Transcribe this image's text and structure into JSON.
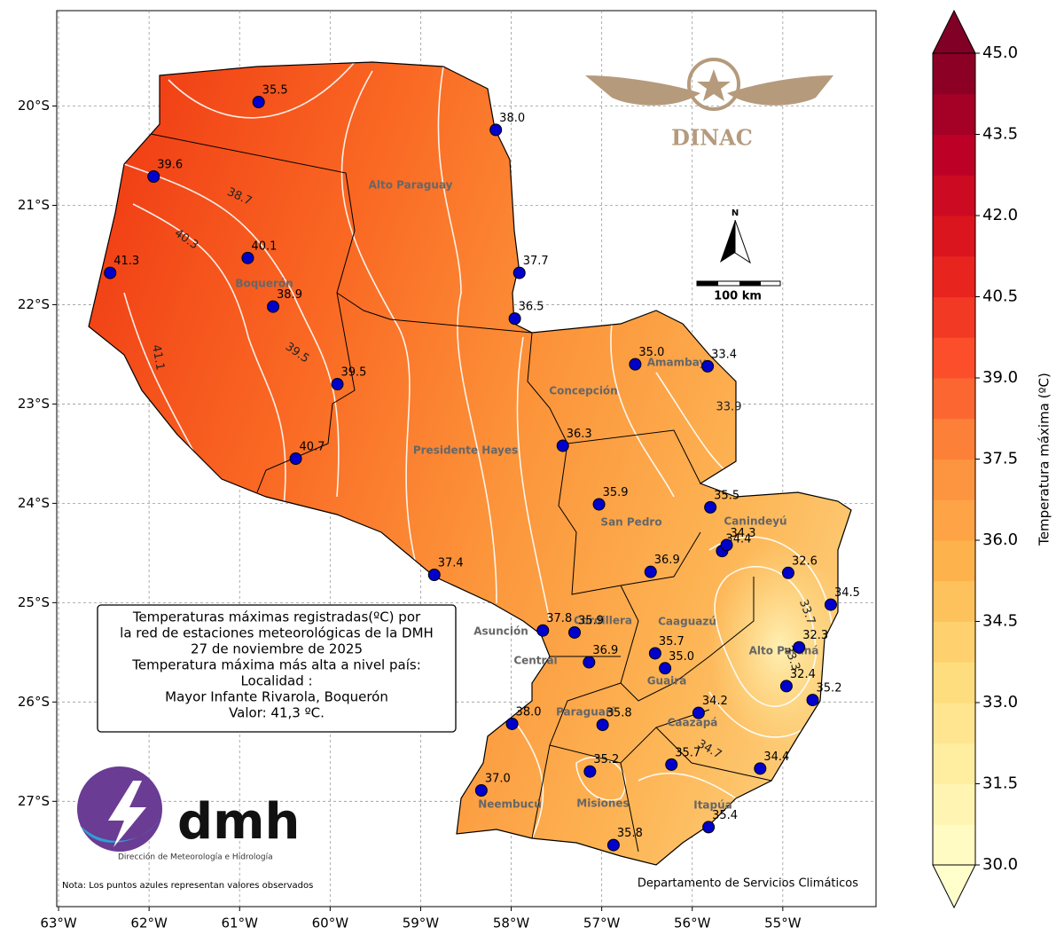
{
  "map": {
    "xlim": [
      -63.02,
      -53.97
    ],
    "ylim": [
      -28.06,
      -19.04
    ],
    "xticks": [
      {
        "value": -63,
        "label": "63°W"
      },
      {
        "value": -62,
        "label": "62°W"
      },
      {
        "value": -61,
        "label": "61°W"
      },
      {
        "value": -60,
        "label": "60°W"
      },
      {
        "value": -59,
        "label": "59°W"
      },
      {
        "value": -58,
        "label": "58°W"
      },
      {
        "value": -57,
        "label": "57°W"
      },
      {
        "value": -56,
        "label": "56°W"
      },
      {
        "value": -55,
        "label": "55°W"
      }
    ],
    "yticks": [
      {
        "value": -20,
        "label": "20°S"
      },
      {
        "value": -21,
        "label": "21°S"
      },
      {
        "value": -22,
        "label": "22°S"
      },
      {
        "value": -23,
        "label": "23°S"
      },
      {
        "value": -24,
        "label": "24°S"
      },
      {
        "value": -25,
        "label": "25°S"
      },
      {
        "value": -26,
        "label": "26°S"
      },
      {
        "value": -27,
        "label": "27°S"
      }
    ],
    "grid": true,
    "marker_color": "#0000cc",
    "stations": [
      {
        "lon": -60.79,
        "lat": -19.96,
        "value": 35.5,
        "label": "35.5"
      },
      {
        "lon": -58.17,
        "lat": -20.24,
        "value": 38.0,
        "label": "38.0"
      },
      {
        "lon": -61.95,
        "lat": -20.71,
        "value": 39.6,
        "label": "39.6"
      },
      {
        "lon": -60.91,
        "lat": -21.53,
        "value": 40.1,
        "label": "40.1"
      },
      {
        "lon": -62.43,
        "lat": -21.68,
        "value": 41.3,
        "label": "41.3"
      },
      {
        "lon": -60.63,
        "lat": -22.02,
        "value": 38.9,
        "label": "38.9"
      },
      {
        "lon": -57.91,
        "lat": -21.68,
        "value": 37.7,
        "label": "37.7"
      },
      {
        "lon": -57.96,
        "lat": -22.14,
        "value": 36.5,
        "label": "36.5"
      },
      {
        "lon": -59.92,
        "lat": -22.8,
        "value": 39.5,
        "label": "39.5"
      },
      {
        "lon": -56.63,
        "lat": -22.6,
        "value": 35.0,
        "label": "35.0"
      },
      {
        "lon": -55.83,
        "lat": -22.62,
        "value": 33.4,
        "label": "33.4"
      },
      {
        "lon": -57.43,
        "lat": -23.42,
        "value": 36.3,
        "label": "36.3"
      },
      {
        "lon": -60.38,
        "lat": -23.55,
        "value": 40.7,
        "label": "40.7"
      },
      {
        "lon": -57.03,
        "lat": -24.01,
        "value": 35.9,
        "label": "35.9"
      },
      {
        "lon": -55.8,
        "lat": -24.04,
        "value": 35.5,
        "label": "35.5"
      },
      {
        "lon": -55.67,
        "lat": -24.48,
        "value": 34.4,
        "label": "34.4"
      },
      {
        "lon": -55.62,
        "lat": -24.42,
        "value": 34.3,
        "label": "34.3"
      },
      {
        "lon": -56.46,
        "lat": -24.69,
        "value": 36.9,
        "label": "36.9"
      },
      {
        "lon": -58.85,
        "lat": -24.72,
        "value": 37.4,
        "label": "37.4"
      },
      {
        "lon": -54.94,
        "lat": -24.7,
        "value": 32.6,
        "label": "32.6"
      },
      {
        "lon": -54.47,
        "lat": -25.02,
        "value": 34.5,
        "label": "34.5"
      },
      {
        "lon": -57.65,
        "lat": -25.28,
        "value": 37.8,
        "label": "37.8"
      },
      {
        "lon": -57.3,
        "lat": -25.3,
        "value": 35.9,
        "label": "35.9"
      },
      {
        "lon": -57.14,
        "lat": -25.6,
        "value": 36.9,
        "label": "36.9"
      },
      {
        "lon": -56.41,
        "lat": -25.51,
        "value": 35.7,
        "label": "35.7"
      },
      {
        "lon": -56.3,
        "lat": -25.66,
        "value": 35.0,
        "label": "35.0"
      },
      {
        "lon": -54.82,
        "lat": -25.45,
        "value": 32.3,
        "label": "32.3"
      },
      {
        "lon": -54.96,
        "lat": -25.84,
        "value": 32.4,
        "label": "32.4"
      },
      {
        "lon": -54.67,
        "lat": -25.98,
        "value": 35.2,
        "label": "35.2"
      },
      {
        "lon": -57.99,
        "lat": -26.22,
        "value": 38.0,
        "label": "38.0"
      },
      {
        "lon": -56.99,
        "lat": -26.23,
        "value": 35.8,
        "label": "35.8"
      },
      {
        "lon": -55.93,
        "lat": -26.11,
        "value": 34.2,
        "label": "34.2"
      },
      {
        "lon": -57.13,
        "lat": -26.7,
        "value": 35.2,
        "label": "35.2"
      },
      {
        "lon": -56.23,
        "lat": -26.63,
        "value": 35.7,
        "label": "35.7"
      },
      {
        "lon": -55.25,
        "lat": -26.67,
        "value": 34.4,
        "label": "34.4"
      },
      {
        "lon": -58.33,
        "lat": -26.89,
        "value": 37.0,
        "label": "37.0"
      },
      {
        "lon": -55.82,
        "lat": -27.26,
        "value": 35.4,
        "label": "35.4"
      },
      {
        "lon": -56.87,
        "lat": -27.44,
        "value": 35.8,
        "label": "35.8"
      }
    ],
    "departments": [
      "Alto Paraguay",
      "Boquerón",
      "Concepción",
      "Amambay",
      "Presidente Hayes",
      "San Pedro",
      "Canindeyú",
      "Caaguazú",
      "Alto Paraná",
      "Cordillera",
      "Asunción",
      "Central",
      "Guairá",
      "Paraguarí",
      "Caazapá",
      "Misiones",
      "Neembucú",
      "Itapúa"
    ],
    "contour_labels": [
      "38.7",
      "40.3",
      "41.1",
      "39.5",
      "33.9",
      "33.7",
      "33.3",
      "34.7"
    ]
  },
  "colorbar": {
    "label": "Temperatura máxima (ºC)",
    "lim": [
      30,
      45
    ],
    "step": 0.75,
    "colormap": "YlOrRd",
    "ticks": [
      {
        "value": 30,
        "label": "30.0"
      },
      {
        "value": 31.5,
        "label": "31.5"
      },
      {
        "value": 33,
        "label": "33.0"
      },
      {
        "value": 34.5,
        "label": "34.5"
      },
      {
        "value": 36,
        "label": "36.0"
      },
      {
        "value": 37.5,
        "label": "37.5"
      },
      {
        "value": 39,
        "label": "39.0"
      },
      {
        "value": 40.5,
        "label": "40.5"
      },
      {
        "value": 42,
        "label": "42.0"
      },
      {
        "value": 43.5,
        "label": "43.5"
      },
      {
        "value": 45,
        "label": "45.0"
      }
    ]
  },
  "info_box": [
    "Temperaturas máximas registradas(ºC) por",
    "la red de estaciones meteorológicas de la DMH",
    "27 de noviembre de 2025",
    "Temperatura máxima más alta a nivel país:",
    "Localidad :",
    "Mayor Infante Rivarola, Boquerón",
    "Valor: 41,3 ºC."
  ],
  "logos": {
    "dinac": "DINAC",
    "dmh": "dmh",
    "dmh_sub": "Dirección de Meteorología e Hidrología"
  },
  "north": "N",
  "scale_label": "100 km",
  "note": "Nota: Los puntos azules representan valores observados",
  "credit": "Departamento de Servicios Climáticos"
}
